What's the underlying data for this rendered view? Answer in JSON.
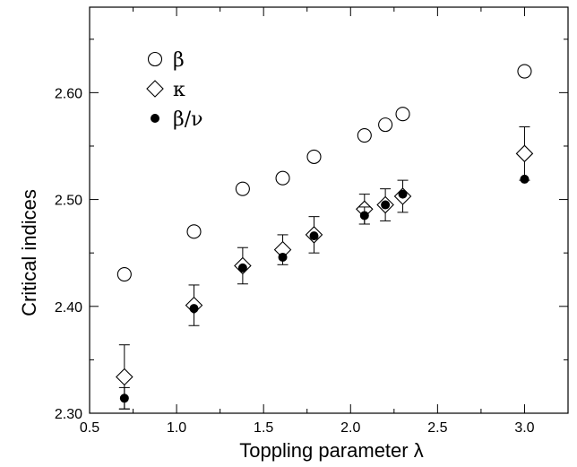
{
  "chart_data": {
    "type": "scatter",
    "title": "",
    "xlabel": "Toppling parameter λ",
    "ylabel": "Critical indices",
    "xlim": [
      0.5,
      3.25
    ],
    "ylim": [
      2.3,
      2.68
    ],
    "xticks": [
      0.5,
      1.0,
      1.5,
      2.0,
      2.5,
      3.0
    ],
    "xtick_labels": [
      "0.5",
      "1.0",
      "1.5",
      "2.0",
      "2.5",
      "3.0"
    ],
    "yticks": [
      2.3,
      2.4,
      2.5,
      2.6
    ],
    "ytick_labels": [
      "2.30",
      "2.40",
      "2.50",
      "2.60"
    ],
    "grid": false,
    "legend_position": "top-left",
    "series": [
      {
        "name": "β",
        "marker": "open-circle",
        "points": [
          {
            "x": 0.7,
            "y": 2.43
          },
          {
            "x": 1.1,
            "y": 2.47
          },
          {
            "x": 1.38,
            "y": 2.51
          },
          {
            "x": 1.61,
            "y": 2.52
          },
          {
            "x": 1.79,
            "y": 2.54
          },
          {
            "x": 2.08,
            "y": 2.56
          },
          {
            "x": 2.2,
            "y": 2.57
          },
          {
            "x": 2.3,
            "y": 2.58
          },
          {
            "x": 3.0,
            "y": 2.62
          }
        ]
      },
      {
        "name": "κ",
        "marker": "open-diamond",
        "points": [
          {
            "x": 0.7,
            "y": 2.334,
            "yerr": 0.03
          },
          {
            "x": 1.1,
            "y": 2.401,
            "yerr": 0.019
          },
          {
            "x": 1.38,
            "y": 2.438,
            "yerr": 0.017
          },
          {
            "x": 1.61,
            "y": 2.453,
            "yerr": 0.014
          },
          {
            "x": 1.79,
            "y": 2.467,
            "yerr": 0.017
          },
          {
            "x": 2.08,
            "y": 2.491,
            "yerr": 0.014
          },
          {
            "x": 2.2,
            "y": 2.495,
            "yerr": 0.015
          },
          {
            "x": 2.3,
            "y": 2.503,
            "yerr": 0.015
          },
          {
            "x": 3.0,
            "y": 2.543,
            "yerr": 0.025
          }
        ]
      },
      {
        "name": "β/ν",
        "marker": "filled-circle",
        "points": [
          {
            "x": 0.7,
            "y": 2.314,
            "yerr": 0.01
          },
          {
            "x": 1.1,
            "y": 2.398
          },
          {
            "x": 1.38,
            "y": 2.436
          },
          {
            "x": 1.61,
            "y": 2.446
          },
          {
            "x": 1.79,
            "y": 2.466
          },
          {
            "x": 2.08,
            "y": 2.485,
            "yerr": 0.008
          },
          {
            "x": 2.2,
            "y": 2.495
          },
          {
            "x": 2.3,
            "y": 2.505
          },
          {
            "x": 3.0,
            "y": 2.519
          }
        ]
      }
    ]
  }
}
